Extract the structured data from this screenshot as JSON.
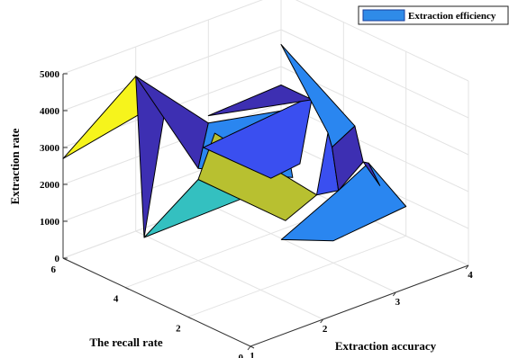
{
  "chart_data": {
    "type": "surface",
    "xlabel": "Extraction accuracy",
    "ylabel": "The recall rate",
    "zlabel": "Extraction rate",
    "xlim": [
      1,
      4
    ],
    "ylim": [
      0,
      6
    ],
    "zlim": [
      0,
      5000
    ],
    "x_ticks": [
      "1",
      "2",
      "3",
      "4"
    ],
    "y_ticks": [
      "0",
      "2",
      "4",
      "6"
    ],
    "z_ticks": [
      "0",
      "1000",
      "2000",
      "3000",
      "4000",
      "5000"
    ],
    "grid": true,
    "legend": {
      "entries": [
        "Extraction efficiency"
      ],
      "position": "top-right",
      "swatch_color": "#2f8be8"
    },
    "colormap": [
      "#3d2fb2",
      "#3a4ff0",
      "#2a86f0",
      "#34c0c0",
      "#b8c030",
      "#f6f41c"
    ],
    "x": [
      1,
      2,
      3,
      4
    ],
    "y": [
      0,
      2,
      4,
      6
    ],
    "z": [
      [
        600,
        800,
        700,
        400
      ],
      [
        1700,
        2100,
        2400,
        900
      ],
      [
        2900,
        2800,
        2100,
        1200
      ],
      [
        2700,
        4200,
        2300,
        1500
      ]
    ],
    "polygons": [
      {
        "pts": [
          [
            1,
            6,
            2700
          ],
          [
            2,
            6,
            4200
          ],
          [
            2,
            5,
            4000
          ]
        ],
        "color": "#f6f41c"
      },
      {
        "pts": [
          [
            2,
            6,
            4200
          ],
          [
            1.6,
            4.8,
            600
          ],
          [
            2,
            5,
            4000
          ]
        ],
        "color": "#3d2fb2"
      },
      {
        "pts": [
          [
            2,
            6,
            4200
          ],
          [
            3,
            6,
            2200
          ],
          [
            2,
            4,
            2500
          ]
        ],
        "color": "#3d2fb2"
      },
      {
        "pts": [
          [
            2,
            4,
            2500
          ],
          [
            3,
            6,
            2200
          ],
          [
            4,
            6,
            1800
          ],
          [
            3.3,
            4,
            1300
          ]
        ],
        "color": "#2a86f0"
      },
      {
        "pts": [
          [
            1.6,
            4.8,
            600
          ],
          [
            2,
            4,
            2200
          ],
          [
            2.5,
            3.5,
            1600
          ]
        ],
        "color": "#34c0c0"
      },
      {
        "pts": [
          [
            2,
            4,
            2200
          ],
          [
            2.4,
            4.4,
            3000
          ],
          [
            3.2,
            3,
            1300
          ],
          [
            2.6,
            2.6,
            1200
          ]
        ],
        "color": "#b8c030"
      },
      {
        "pts": [
          [
            2.5,
            5,
            2300
          ],
          [
            4,
            5,
            2600
          ],
          [
            3.4,
            4,
            1600
          ],
          [
            3,
            4,
            1500
          ]
        ],
        "color": "#3a4ff0"
      },
      {
        "pts": [
          [
            3,
            6,
            2400
          ],
          [
            4,
            6,
            2500
          ],
          [
            4,
            5,
            2500
          ]
        ],
        "color": "#3d2fb2"
      },
      {
        "pts": [
          [
            3.2,
            3,
            1300
          ],
          [
            4,
            4.5,
            1800
          ],
          [
            4.1,
            4.6,
            1300
          ],
          [
            3.5,
            3,
            1200
          ]
        ],
        "color": "#3a4ff0"
      },
      {
        "pts": [
          [
            4,
            4.5,
            1800
          ],
          [
            4,
            6,
            3600
          ],
          [
            4.5,
            4.8,
            1500
          ],
          [
            4.1,
            4.6,
            1300
          ]
        ],
        "color": "#2a86f0"
      },
      {
        "pts": [
          [
            3.5,
            3,
            1200
          ],
          [
            4.1,
            4.6,
            1300
          ],
          [
            4.5,
            4.8,
            1500
          ],
          [
            4.4,
            4.3,
            800
          ]
        ],
        "color": "#3d2fb2"
      },
      {
        "pts": [
          [
            2.5,
            2.5,
            800
          ],
          [
            3.5,
            3,
            1200
          ],
          [
            4,
            3.2,
            1500
          ],
          [
            4,
            2,
            800
          ],
          [
            3,
            2,
            600
          ]
        ],
        "color": "#2a86f0"
      },
      {
        "pts": [
          [
            4,
            3.2,
            1500
          ],
          [
            4.4,
            4.3,
            800
          ],
          [
            4.2,
            3.3,
            700
          ]
        ],
        "color": "#3d2fb2"
      }
    ]
  }
}
